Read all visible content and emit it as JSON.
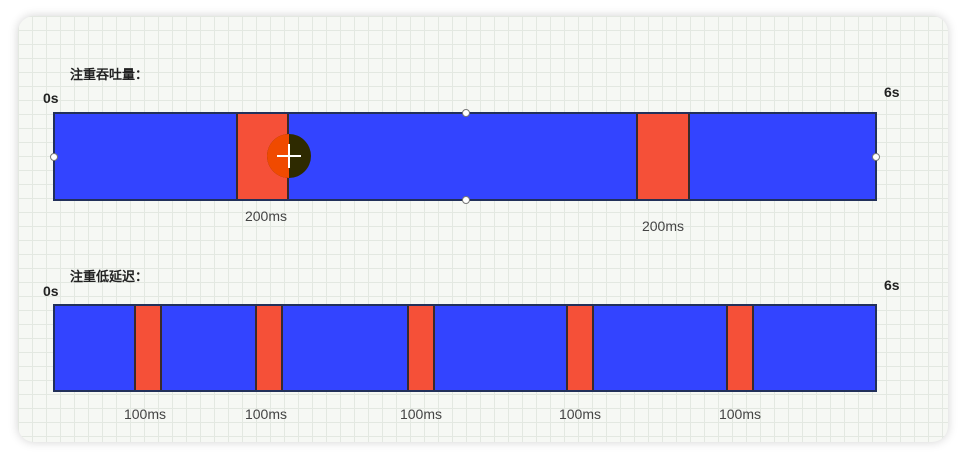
{
  "throughput": {
    "title": "注重吞吐量：",
    "start_label": "0s",
    "end_label": "6s",
    "pauses": [
      {
        "label": "200ms"
      },
      {
        "label": "200ms"
      }
    ]
  },
  "low_latency": {
    "title": "注重低延迟：",
    "start_label": "0s",
    "end_label": "6s",
    "pauses": [
      {
        "label": "100ms"
      },
      {
        "label": "100ms"
      },
      {
        "label": "100ms"
      },
      {
        "label": "100ms"
      },
      {
        "label": "100ms"
      }
    ]
  },
  "colors": {
    "run": "#3344ff",
    "pause": "#f55038",
    "border": "#22305a"
  },
  "cursor_icon": "crosshair-cursor-icon"
}
